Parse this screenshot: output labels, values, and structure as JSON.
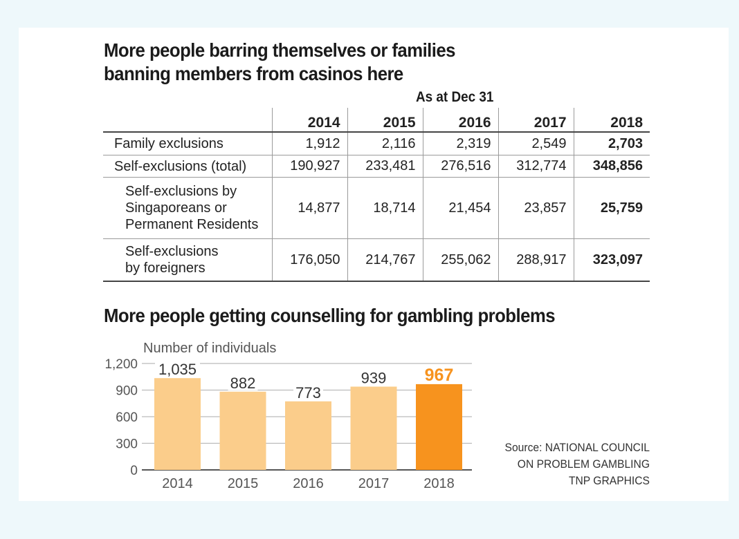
{
  "table_title": "More people barring themselves or families banning members from casinos here",
  "as_at": "As at Dec 31",
  "table": {
    "columns": [
      "2014",
      "2015",
      "2016",
      "2017",
      "2018"
    ],
    "rows": [
      {
        "label": "Family exclusions",
        "values": [
          "1,912",
          "2,116",
          "2,319",
          "2,549",
          "2,703"
        ]
      },
      {
        "label": "Self-exclusions (total)",
        "values": [
          "190,927",
          "233,481",
          "276,516",
          "312,774",
          "348,856"
        ]
      },
      {
        "label_lines": [
          "Self-exclusions by",
          "Singaporeans or",
          "Permanent Residents"
        ],
        "values": [
          "14,877",
          "18,714",
          "21,454",
          "23,857",
          "25,759"
        ]
      },
      {
        "label_lines": [
          "Self-exclusions",
          "by foreigners"
        ],
        "values": [
          "176,050",
          "214,767",
          "255,062",
          "288,917",
          "323,097"
        ]
      }
    ]
  },
  "chart_title": "More people getting counselling for gambling problems",
  "chart_data": {
    "type": "bar",
    "ylabel": "Number of individuals",
    "categories": [
      "2014",
      "2015",
      "2016",
      "2017",
      "2018"
    ],
    "values": [
      1035,
      882,
      773,
      939,
      967
    ],
    "value_labels": [
      "1,035",
      "882",
      "773",
      "939",
      "967"
    ],
    "yticks": [
      0,
      300,
      600,
      900,
      1200
    ],
    "ytick_labels": [
      "0",
      "300",
      "600",
      "900",
      "1,200"
    ],
    "ylim": [
      0,
      1200
    ],
    "grid": true,
    "colors": {
      "bar": "#fbcd8b",
      "highlight_bar": "#f7931e",
      "highlight_label": "#f7931e",
      "grid": "#bbbbbb"
    },
    "highlight_index": 4
  },
  "source": [
    "Source: NATIONAL COUNCIL",
    "ON PROBLEM GAMBLING",
    "TNP GRAPHICS"
  ]
}
